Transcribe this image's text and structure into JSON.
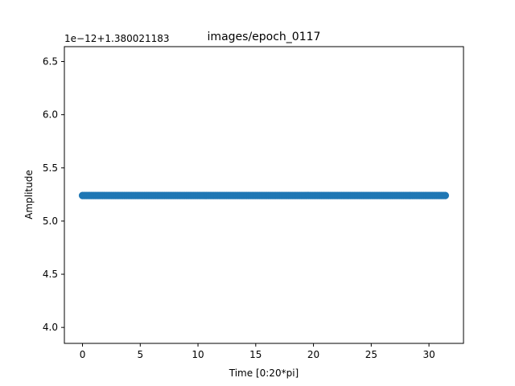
{
  "chart_data": {
    "type": "scatter",
    "title": "images/epoch_0117",
    "xlabel": "Time [0:20*pi]",
    "ylabel": "Amplitude",
    "offset_label": "1e−12+1.380021183",
    "xlim": [
      -1.57,
      32.99
    ],
    "ylim": [
      3.85,
      6.64
    ],
    "x_ticks": [
      0,
      5,
      10,
      15,
      20,
      25,
      30
    ],
    "x_tick_labels": [
      "0",
      "5",
      "10",
      "15",
      "20",
      "25",
      "30"
    ],
    "y_ticks": [
      4.0,
      4.5,
      5.0,
      5.5,
      6.0,
      6.5
    ],
    "y_tick_labels": [
      "4.0",
      "4.5",
      "5.0",
      "5.5",
      "6.0",
      "6.5"
    ],
    "grid": false,
    "series": [
      {
        "marker": "circle",
        "color": "#1f77b4",
        "x_start": 0,
        "x_end": 31.4159,
        "point_count": 200,
        "y": 5.24
      }
    ]
  }
}
